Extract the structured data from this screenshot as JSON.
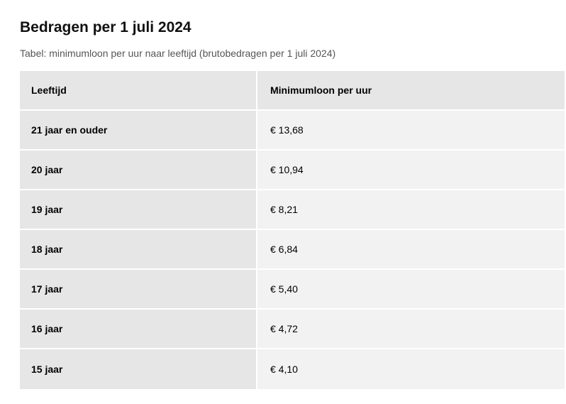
{
  "heading": "Bedragen per 1 juli 2024",
  "caption": "Tabel: minimumloon per uur naar leeftijd (brutobedragen per 1 juli 2024)",
  "table": {
    "headers": [
      "Leeftijd",
      "Minimumloon per uur"
    ],
    "rows": [
      [
        "21 jaar en ouder",
        "€ 13,68"
      ],
      [
        "20 jaar",
        "€ 10,94"
      ],
      [
        "19 jaar",
        "€ 8,21"
      ],
      [
        "18 jaar",
        "€ 6,84"
      ],
      [
        "17 jaar",
        "€ 5,40"
      ],
      [
        "16 jaar",
        "€ 4,72"
      ],
      [
        "15 jaar",
        "€ 4,10"
      ]
    ]
  }
}
